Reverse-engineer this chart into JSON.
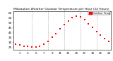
{
  "title": "Milwaukee Weather Outdoor Temperature per Hour (24 Hours)",
  "title_fontsize": 3.2,
  "background_color": "#ffffff",
  "plot_bg_color": "#ffffff",
  "grid_color": "#aaaaaa",
  "dot_color": "#ff0000",
  "hours": [
    0,
    1,
    2,
    3,
    4,
    5,
    6,
    7,
    8,
    9,
    10,
    11,
    12,
    13,
    14,
    15,
    16,
    17,
    18,
    19,
    20,
    21,
    22,
    23
  ],
  "temps": [
    28,
    27,
    26,
    26,
    25,
    25,
    26,
    28,
    31,
    35,
    39,
    44,
    48,
    52,
    55,
    57,
    56,
    53,
    49,
    45,
    41,
    37,
    34,
    31
  ],
  "ylim": [
    22,
    62
  ],
  "xlim": [
    -0.5,
    23.5
  ],
  "legend_label": "Outdoor Temp",
  "legend_color": "#ff0000",
  "ytick_fontsize": 3.0,
  "xtick_fontsize": 3.0,
  "yticks": [
    25,
    30,
    35,
    40,
    45,
    50,
    55,
    60
  ],
  "xticks": [
    1,
    3,
    5,
    7,
    9,
    11,
    13,
    15,
    17,
    19,
    21,
    23
  ],
  "xtick_labels": [
    "1",
    "3",
    "5",
    "7",
    "9",
    "11",
    "13",
    "15",
    "17",
    "19",
    "21",
    "23"
  ],
  "ytick_labels": [
    "25",
    "30",
    "35",
    "40",
    "45",
    "50",
    "55",
    "60"
  ],
  "vgrid_positions": [
    4,
    8,
    12,
    16,
    20
  ],
  "dot_size": 2.5,
  "figwidth": 1.6,
  "figheight": 0.87,
  "dpi": 100
}
